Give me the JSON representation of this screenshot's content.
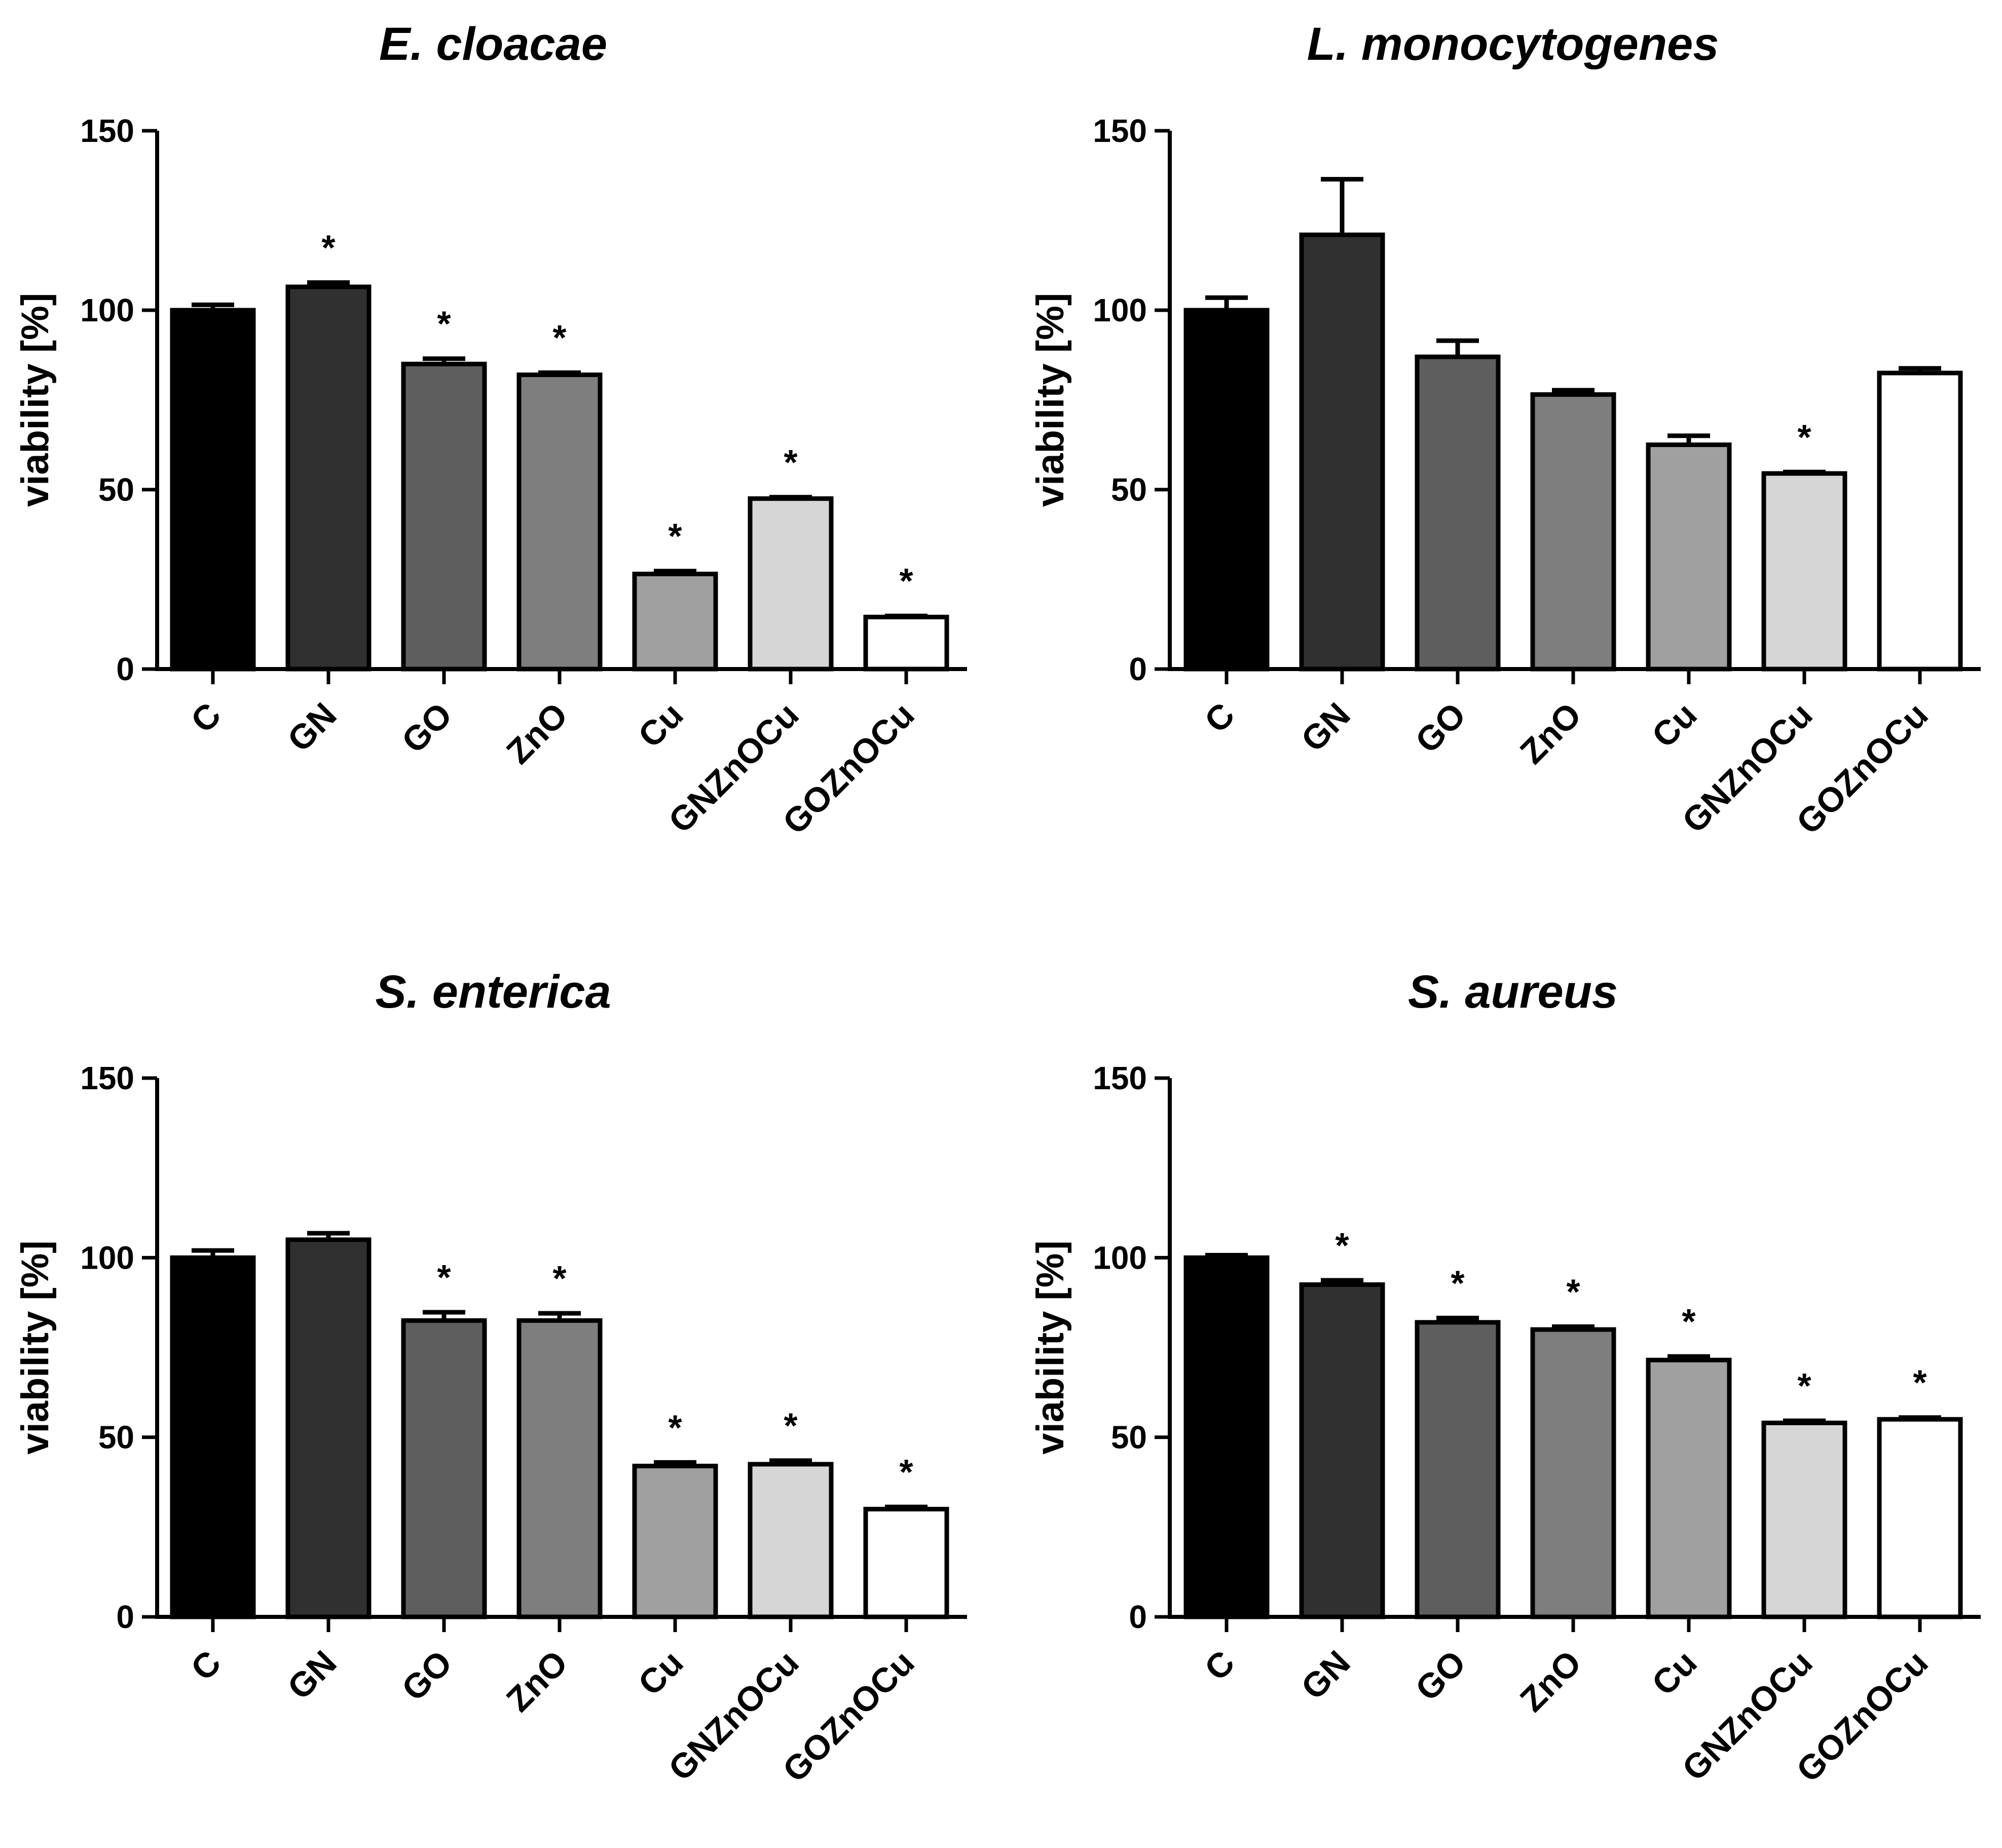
{
  "chart_data": [
    {
      "type": "bar",
      "title": "E. cloacae",
      "xlabel": "",
      "ylabel": "viability [%]",
      "ylim": [
        0,
        150
      ],
      "yticks": [
        0,
        50,
        100,
        150
      ],
      "categories": [
        "C",
        "GN",
        "GO",
        "ZnO",
        "Cu",
        "GNZnOCu",
        "GOZnOCu"
      ],
      "values": [
        100,
        106.5,
        85,
        82,
        26.5,
        47.5,
        14.5
      ],
      "errors": [
        1.5,
        1.2,
        1.5,
        0.6,
        0.8,
        0.4,
        0.3
      ],
      "significant": [
        false,
        true,
        true,
        true,
        true,
        true,
        true
      ],
      "significance_marker": "*",
      "fills": [
        "#000000",
        "#303030",
        "#5e5e5e",
        "#7e7e7e",
        "#a0a0a0",
        "#d6d6d6",
        "#ffffff"
      ]
    },
    {
      "type": "bar",
      "title": "L. monocytogenes",
      "xlabel": "",
      "ylabel": "viability [%]",
      "ylim": [
        0,
        150
      ],
      "yticks": [
        0,
        50,
        100,
        150
      ],
      "categories": [
        "C",
        "GN",
        "GO",
        "ZnO",
        "Cu",
        "GNZnOCu",
        "GOZnOCu"
      ],
      "values": [
        100,
        121,
        87,
        76.5,
        62.5,
        54.5,
        82.5
      ],
      "errors": [
        3.5,
        15.5,
        4.5,
        1.2,
        2.5,
        0.4,
        1.3
      ],
      "significant": [
        false,
        false,
        false,
        false,
        false,
        true,
        false
      ],
      "significance_marker": "*",
      "fills": [
        "#000000",
        "#303030",
        "#5e5e5e",
        "#7e7e7e",
        "#a0a0a0",
        "#d6d6d6",
        "#ffffff"
      ]
    },
    {
      "type": "bar",
      "title": "S. enterica",
      "xlabel": "",
      "ylabel": "viability [%]",
      "ylim": [
        0,
        150
      ],
      "yticks": [
        0,
        50,
        100,
        150
      ],
      "categories": [
        "C",
        "GN",
        "GO",
        "ZnO",
        "Cu",
        "GNZnOCu",
        "GOZnOCu"
      ],
      "values": [
        100,
        105,
        82.5,
        82.5,
        42,
        42.5,
        30
      ],
      "errors": [
        2.0,
        1.8,
        2.3,
        2.0,
        1.0,
        1.0,
        0.6
      ],
      "significant": [
        false,
        false,
        true,
        true,
        true,
        true,
        true
      ],
      "significance_marker": "*",
      "fills": [
        "#000000",
        "#303030",
        "#5e5e5e",
        "#7e7e7e",
        "#a0a0a0",
        "#d6d6d6",
        "#ffffff"
      ]
    },
    {
      "type": "bar",
      "title": "S. aureus",
      "xlabel": "",
      "ylabel": "viability [%]",
      "ylim": [
        0,
        150
      ],
      "yticks": [
        0,
        50,
        100,
        150
      ],
      "categories": [
        "C",
        "GN",
        "GO",
        "ZnO",
        "Cu",
        "GNZnOCu",
        "GOZnOCu"
      ],
      "values": [
        100,
        92.5,
        82,
        80,
        71.5,
        54,
        55
      ],
      "errors": [
        0.7,
        1.2,
        1.2,
        0.8,
        1.0,
        0.6,
        0.5
      ],
      "significant": [
        false,
        true,
        true,
        true,
        true,
        true,
        true
      ],
      "significance_marker": "*",
      "fills": [
        "#000000",
        "#303030",
        "#5e5e5e",
        "#7e7e7e",
        "#a0a0a0",
        "#d6d6d6",
        "#ffffff"
      ]
    }
  ]
}
